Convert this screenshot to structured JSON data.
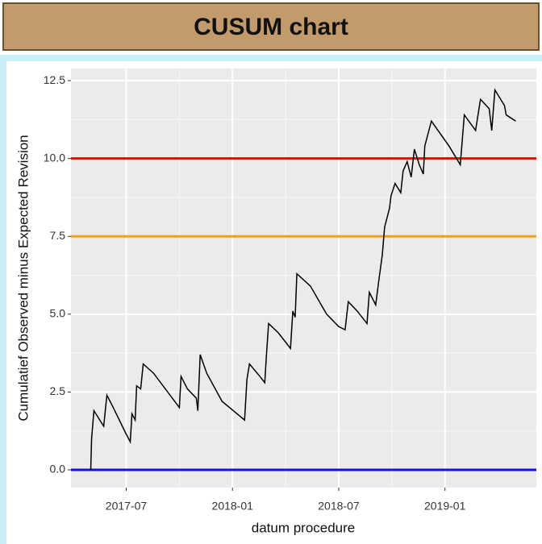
{
  "header": {
    "title": "CUSUM chart"
  },
  "chart_data": {
    "type": "line",
    "xlabel": "datum procedure",
    "ylabel": "Cumulatief Observed minus Expected Revision",
    "x": [
      2017.333,
      2017.337,
      2017.348,
      2017.394,
      2017.409,
      2017.439,
      2017.496,
      2017.519,
      2017.527,
      2017.542,
      2017.549,
      2017.568,
      2017.58,
      2017.629,
      2017.75,
      2017.758,
      2017.788,
      2017.83,
      2017.837,
      2017.848,
      2017.879,
      2017.951,
      2018.057,
      2018.068,
      2018.08,
      2018.129,
      2018.152,
      2018.159,
      2018.17,
      2018.216,
      2018.273,
      2018.284,
      2018.295,
      2018.303,
      2018.367,
      2018.443,
      2018.5,
      2018.53,
      2018.545,
      2018.587,
      2018.633,
      2018.644,
      2018.674,
      2018.689,
      2018.705,
      2018.716,
      2018.739,
      2018.746,
      2018.765,
      2018.792,
      2018.803,
      2018.822,
      2018.841,
      2018.856,
      2018.879,
      2018.898,
      2018.905,
      2018.936,
      2019.019,
      2019.072,
      2019.091,
      2019.144,
      2019.167,
      2019.208,
      2019.22,
      2019.235,
      2019.28,
      2019.288,
      2019.333
    ],
    "series": [
      {
        "color": "#000000",
        "values": [
          0,
          1.0,
          1.9,
          1.4,
          2.4,
          2.0,
          1.2,
          0.9,
          1.8,
          1.6,
          2.7,
          2.6,
          3.4,
          3.1,
          2.0,
          3.0,
          2.6,
          2.3,
          1.9,
          3.7,
          3.1,
          2.2,
          1.6,
          2.9,
          3.4,
          3.0,
          2.8,
          3.6,
          4.7,
          4.4,
          3.9,
          5.1,
          4.9,
          6.3,
          5.9,
          5.0,
          4.6,
          4.5,
          5.4,
          5.1,
          4.7,
          5.7,
          5.3,
          6.1,
          6.9,
          7.8,
          8.4,
          8.8,
          9.2,
          8.9,
          9.6,
          9.9,
          9.4,
          10.3,
          9.8,
          9.5,
          10.4,
          11.2,
          10.4,
          9.8,
          11.4,
          10.9,
          11.9,
          11.6,
          10.9,
          12.2,
          11.7,
          11.4,
          11.2
        ]
      }
    ],
    "hlines": [
      {
        "value": 10,
        "color": "#ff0000"
      },
      {
        "value": 7.5,
        "color": "#f0a020"
      },
      {
        "value": 0,
        "color": "#1010e0"
      }
    ],
    "xlim": [
      2017.24,
      2019.43
    ],
    "ylim": [
      -0.57,
      12.89
    ],
    "xticks": [
      {
        "value": 2017.5,
        "label": "2017-07"
      },
      {
        "value": 2018,
        "label": "2018-01"
      },
      {
        "value": 2018.5,
        "label": "2018-07"
      },
      {
        "value": 2019,
        "label": "2019-01"
      }
    ],
    "yticks": [
      {
        "value": 0,
        "label": "0.0"
      },
      2.5,
      {
        "value": 5,
        "label": "5.0"
      },
      7.5,
      {
        "value": 10,
        "label": "10.0"
      },
      12.5
    ],
    "grid": true
  }
}
